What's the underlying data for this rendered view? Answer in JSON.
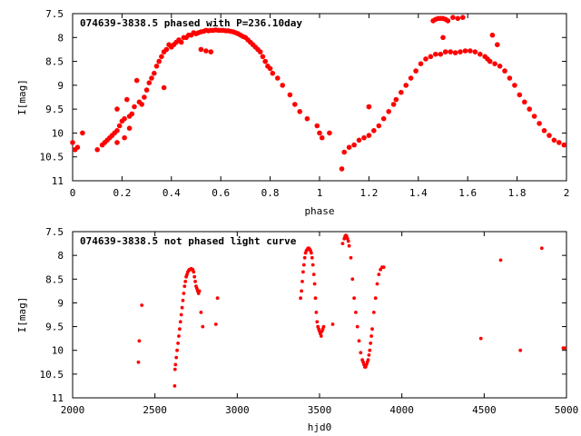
{
  "chart_data": [
    {
      "type": "scatter",
      "title": "074639-3838.5 phased with P=236.10day",
      "xlabel": "phase",
      "ylabel": "I[mag]",
      "xlim": [
        0,
        2
      ],
      "ylim": [
        11,
        7.5
      ],
      "y_inverted": true,
      "grid": false,
      "marker_color": "#ff0000",
      "xticks": [
        "0",
        "0.2",
        "0.4",
        "0.6",
        "0.8",
        "1",
        "1.2",
        "1.4",
        "1.6",
        "1.8",
        "2"
      ],
      "yticks": [
        "7.5",
        "8",
        "8.5",
        "9",
        "9.5",
        "10",
        "10.5",
        "11"
      ],
      "series": [
        {
          "x": [
            0.0,
            0.01,
            0.04,
            0.1,
            0.12,
            0.13,
            0.14,
            0.15,
            0.16,
            0.17,
            0.18,
            0.18,
            0.19,
            0.2,
            0.21,
            0.22,
            0.23,
            0.24,
            0.25,
            0.26,
            0.27,
            0.29,
            0.3,
            0.31,
            0.32,
            0.33,
            0.34,
            0.35,
            0.36,
            0.37,
            0.38,
            0.39,
            0.4,
            0.41,
            0.42,
            0.43,
            0.44,
            0.45,
            0.46,
            0.47,
            0.48,
            0.49,
            0.5,
            0.51,
            0.52,
            0.53,
            0.54,
            0.55,
            0.56,
            0.57,
            0.58,
            0.59,
            0.6,
            0.61,
            0.62,
            0.63,
            0.64,
            0.65,
            0.66,
            0.67,
            0.68,
            0.69,
            0.7,
            0.71,
            0.72,
            0.73,
            0.74,
            0.75,
            0.76,
            0.77,
            0.78,
            0.79,
            0.8,
            0.81,
            0.83,
            0.85,
            0.88,
            0.9,
            0.92,
            0.95,
            0.99,
            1.0,
            1.01,
            1.04,
            1.09,
            1.1,
            1.12,
            1.14,
            1.16,
            1.18,
            1.2,
            1.2,
            1.22,
            1.24,
            1.26,
            1.28,
            1.3,
            1.31,
            1.33,
            1.35,
            1.37,
            1.39,
            1.41,
            1.43,
            1.45,
            1.47,
            1.49,
            1.51,
            1.53,
            1.55,
            1.57,
            1.59,
            1.61,
            1.63,
            1.65,
            1.67,
            1.68,
            1.69,
            1.71,
            1.73,
            1.75,
            1.77,
            1.79,
            1.81,
            1.83,
            1.85,
            1.87,
            1.89,
            1.91,
            1.93,
            1.95,
            1.97,
            1.99,
            1.46,
            1.47,
            1.48,
            1.49,
            1.5,
            1.51,
            1.52,
            1.54,
            1.56,
            1.58,
            1.7,
            1.72,
            1.5,
            0.52,
            0.54,
            0.56,
            0.18,
            0.21,
            0.28,
            0.23,
            0.37,
            1.2,
            0.02
          ],
          "y": [
            10.2,
            10.35,
            10.0,
            10.35,
            10.25,
            10.2,
            10.15,
            10.1,
            10.05,
            10.0,
            9.95,
            9.5,
            9.85,
            9.75,
            9.7,
            9.3,
            9.65,
            9.6,
            9.45,
            8.9,
            9.35,
            9.25,
            9.1,
            8.95,
            8.85,
            8.75,
            8.6,
            8.5,
            8.4,
            8.3,
            8.25,
            8.15,
            8.2,
            8.15,
            8.1,
            8.05,
            8.1,
            8.0,
            8.0,
            7.95,
            7.95,
            7.9,
            7.92,
            7.9,
            7.88,
            7.87,
            7.85,
            7.86,
            7.85,
            7.85,
            7.84,
            7.85,
            7.85,
            7.85,
            7.86,
            7.86,
            7.87,
            7.88,
            7.9,
            7.92,
            7.95,
            7.98,
            8.0,
            8.05,
            8.1,
            8.15,
            8.2,
            8.25,
            8.3,
            8.4,
            8.5,
            8.6,
            8.65,
            8.75,
            8.85,
            9.0,
            9.2,
            9.4,
            9.55,
            9.7,
            9.85,
            10.0,
            10.1,
            10.0,
            10.75,
            10.4,
            10.3,
            10.25,
            10.15,
            10.1,
            10.05,
            9.45,
            9.95,
            9.85,
            9.7,
            9.55,
            9.4,
            9.3,
            9.15,
            9.0,
            8.85,
            8.7,
            8.55,
            8.45,
            8.4,
            8.35,
            8.35,
            8.3,
            8.3,
            8.32,
            8.3,
            8.28,
            8.28,
            8.3,
            8.35,
            8.4,
            8.45,
            8.5,
            8.55,
            8.6,
            8.7,
            8.85,
            9.0,
            9.2,
            9.35,
            9.5,
            9.65,
            9.8,
            9.95,
            10.05,
            10.15,
            10.2,
            10.25,
            7.65,
            7.62,
            7.6,
            7.6,
            7.6,
            7.62,
            7.65,
            7.58,
            7.6,
            7.58,
            7.95,
            8.15,
            8.0,
            8.25,
            8.28,
            8.3,
            10.2,
            10.1,
            9.4,
            9.9,
            9.05,
            9.45,
            10.3
          ]
        }
      ]
    },
    {
      "type": "scatter",
      "title": "074639-3838.5 not phased light curve",
      "xlabel": "hjd0",
      "ylabel": "I[mag]",
      "xlim": [
        2000,
        5000
      ],
      "ylim": [
        11,
        7.5
      ],
      "y_inverted": true,
      "grid": false,
      "marker_color": "#ff0000",
      "xticks": [
        "2000",
        "2500",
        "3000",
        "3500",
        "4000",
        "4500",
        "5000"
      ],
      "yticks": [
        "7.5",
        "8",
        "8.5",
        "9",
        "9.5",
        "10",
        "10.5",
        "11"
      ],
      "series": [
        {
          "x": [
            2400,
            2405,
            2420,
            2620,
            2622,
            2625,
            2630,
            2635,
            2640,
            2645,
            2650,
            2655,
            2660,
            2665,
            2670,
            2675,
            2680,
            2685,
            2690,
            2695,
            2700,
            2705,
            2710,
            2715,
            2720,
            2725,
            2730,
            2735,
            2740,
            2745,
            2750,
            2755,
            2760,
            2765,
            2770,
            2780,
            2790,
            2870,
            2880,
            3385,
            3390,
            3395,
            3400,
            3405,
            3410,
            3415,
            3420,
            3425,
            3430,
            3435,
            3440,
            3445,
            3450,
            3455,
            3460,
            3465,
            3470,
            3475,
            3480,
            3485,
            3490,
            3495,
            3500,
            3505,
            3510,
            3515,
            3520,
            3525,
            3580,
            3640,
            3650,
            3655,
            3660,
            3665,
            3670,
            3675,
            3680,
            3690,
            3700,
            3710,
            3720,
            3730,
            3740,
            3750,
            3760,
            3765,
            3770,
            3775,
            3780,
            3785,
            3790,
            3795,
            3800,
            3805,
            3810,
            3815,
            3820,
            3830,
            3840,
            3850,
            3860,
            3870,
            3880,
            3890,
            4480,
            4600,
            4720,
            4850,
            4980,
            4990
          ],
          "y": [
            10.25,
            9.8,
            9.05,
            10.75,
            10.4,
            10.3,
            10.15,
            10.0,
            9.85,
            9.7,
            9.55,
            9.4,
            9.25,
            9.1,
            8.95,
            8.8,
            8.65,
            8.55,
            8.45,
            8.4,
            8.35,
            8.32,
            8.3,
            8.3,
            8.28,
            8.3,
            8.3,
            8.35,
            8.45,
            8.55,
            8.65,
            8.7,
            8.75,
            8.8,
            8.75,
            9.2,
            9.5,
            9.45,
            8.9,
            8.9,
            8.75,
            8.55,
            8.35,
            8.2,
            8.05,
            7.95,
            7.9,
            7.88,
            7.85,
            7.85,
            7.87,
            7.9,
            7.95,
            8.05,
            8.2,
            8.4,
            8.6,
            8.9,
            9.2,
            9.4,
            9.5,
            9.55,
            9.6,
            9.65,
            9.7,
            9.6,
            9.55,
            9.5,
            9.45,
            7.75,
            7.65,
            7.6,
            7.58,
            7.6,
            7.65,
            7.7,
            7.8,
            8.05,
            8.5,
            8.9,
            9.2,
            9.5,
            9.8,
            10.05,
            10.2,
            10.25,
            10.3,
            10.35,
            10.35,
            10.3,
            10.25,
            10.2,
            10.1,
            10.0,
            9.85,
            9.7,
            9.55,
            9.2,
            8.9,
            8.6,
            8.4,
            8.3,
            8.25,
            8.25,
            9.75,
            8.1,
            10.0,
            7.85,
            9.95,
            9.95
          ]
        }
      ]
    }
  ]
}
